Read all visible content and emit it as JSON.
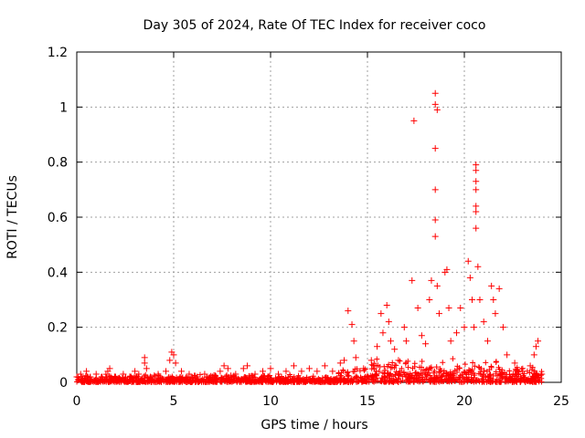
{
  "chart_data": {
    "type": "scatter",
    "title": "Day 305 of 2024, Rate Of TEC Index for receiver coco",
    "xlabel": "GPS time / hours",
    "ylabel": "ROTI / TECUs",
    "xlim": [
      0,
      25
    ],
    "ylim": [
      0,
      1.2
    ],
    "xticks": [
      0,
      5,
      10,
      15,
      20,
      25
    ],
    "xtick_labels": [
      "0",
      "5",
      "10",
      "15",
      "20",
      "25"
    ],
    "yticks": [
      0,
      0.2,
      0.4,
      0.6,
      0.8,
      1.0,
      1.2
    ],
    "ytick_labels": [
      "0",
      "0.2",
      "0.4",
      "0.6",
      "0.8",
      "1",
      "1.2"
    ],
    "grid": true,
    "marker": "+",
    "color": "#ff0000",
    "series": [
      {
        "points": [
          [
            0.0,
            0.02
          ],
          [
            0.2,
            0.03
          ],
          [
            0.4,
            0.01
          ],
          [
            0.5,
            0.04
          ],
          [
            0.7,
            0.02
          ],
          [
            1.0,
            0.03
          ],
          [
            1.3,
            0.02
          ],
          [
            1.6,
            0.04
          ],
          [
            1.7,
            0.05
          ],
          [
            2.0,
            0.02
          ],
          [
            2.4,
            0.03
          ],
          [
            2.8,
            0.02
          ],
          [
            3.0,
            0.04
          ],
          [
            3.2,
            0.03
          ],
          [
            3.5,
            0.09
          ],
          [
            3.5,
            0.07
          ],
          [
            3.6,
            0.05
          ],
          [
            3.8,
            0.02
          ],
          [
            4.2,
            0.03
          ],
          [
            4.6,
            0.04
          ],
          [
            4.8,
            0.08
          ],
          [
            4.9,
            0.11
          ],
          [
            5.0,
            0.1
          ],
          [
            5.1,
            0.07
          ],
          [
            5.4,
            0.04
          ],
          [
            5.8,
            0.03
          ],
          [
            6.2,
            0.02
          ],
          [
            6.6,
            0.03
          ],
          [
            7.0,
            0.02
          ],
          [
            7.4,
            0.04
          ],
          [
            7.6,
            0.06
          ],
          [
            7.8,
            0.05
          ],
          [
            8.2,
            0.03
          ],
          [
            8.6,
            0.05
          ],
          [
            8.8,
            0.06
          ],
          [
            9.2,
            0.03
          ],
          [
            9.6,
            0.04
          ],
          [
            10.0,
            0.05
          ],
          [
            10.4,
            0.03
          ],
          [
            10.8,
            0.04
          ],
          [
            11.2,
            0.06
          ],
          [
            11.6,
            0.04
          ],
          [
            12.0,
            0.05
          ],
          [
            12.4,
            0.04
          ],
          [
            12.8,
            0.06
          ],
          [
            13.2,
            0.04
          ],
          [
            13.6,
            0.07
          ],
          [
            13.8,
            0.08
          ],
          [
            14.0,
            0.26
          ],
          [
            14.2,
            0.21
          ],
          [
            14.3,
            0.15
          ],
          [
            14.4,
            0.09
          ],
          [
            14.8,
            0.05
          ],
          [
            15.2,
            0.08
          ],
          [
            15.5,
            0.13
          ],
          [
            15.7,
            0.25
          ],
          [
            15.8,
            0.18
          ],
          [
            16.0,
            0.28
          ],
          [
            16.1,
            0.22
          ],
          [
            16.2,
            0.15
          ],
          [
            16.4,
            0.12
          ],
          [
            16.6,
            0.08
          ],
          [
            16.9,
            0.2
          ],
          [
            17.0,
            0.15
          ],
          [
            17.3,
            0.37
          ],
          [
            17.4,
            0.95
          ],
          [
            17.6,
            0.27
          ],
          [
            17.8,
            0.17
          ],
          [
            18.0,
            0.14
          ],
          [
            18.2,
            0.3
          ],
          [
            18.3,
            0.37
          ],
          [
            18.5,
            1.05
          ],
          [
            18.5,
            1.01
          ],
          [
            18.6,
            0.99
          ],
          [
            18.5,
            0.85
          ],
          [
            18.5,
            0.7
          ],
          [
            18.5,
            0.59
          ],
          [
            18.5,
            0.53
          ],
          [
            18.6,
            0.35
          ],
          [
            18.7,
            0.25
          ],
          [
            19.0,
            0.4
          ],
          [
            19.1,
            0.41
          ],
          [
            19.2,
            0.27
          ],
          [
            19.3,
            0.15
          ],
          [
            19.6,
            0.18
          ],
          [
            19.8,
            0.27
          ],
          [
            20.0,
            0.2
          ],
          [
            20.2,
            0.44
          ],
          [
            20.3,
            0.38
          ],
          [
            20.4,
            0.3
          ],
          [
            20.5,
            0.2
          ],
          [
            20.6,
            0.79
          ],
          [
            20.6,
            0.77
          ],
          [
            20.6,
            0.73
          ],
          [
            20.6,
            0.7
          ],
          [
            20.6,
            0.64
          ],
          [
            20.6,
            0.62
          ],
          [
            20.6,
            0.56
          ],
          [
            20.7,
            0.42
          ],
          [
            20.8,
            0.3
          ],
          [
            21.0,
            0.22
          ],
          [
            21.2,
            0.15
          ],
          [
            21.4,
            0.35
          ],
          [
            21.5,
            0.3
          ],
          [
            21.6,
            0.25
          ],
          [
            21.8,
            0.34
          ],
          [
            22.0,
            0.2
          ],
          [
            22.2,
            0.1
          ],
          [
            22.6,
            0.07
          ],
          [
            23.0,
            0.04
          ],
          [
            23.4,
            0.06
          ],
          [
            23.6,
            0.1
          ],
          [
            23.7,
            0.13
          ],
          [
            23.8,
            0.15
          ],
          [
            24.0,
            0.03
          ]
        ]
      }
    ]
  }
}
